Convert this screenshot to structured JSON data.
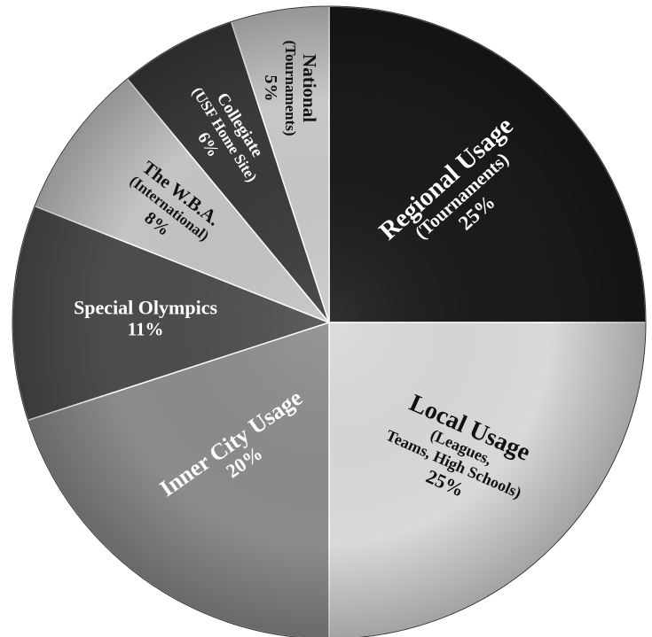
{
  "chart_data": {
    "type": "pie",
    "slices": [
      {
        "title": "Regional Usage",
        "subtitle": "(Tournaments)",
        "percent_label": "25%",
        "value": 25,
        "color": "#1a1a1a",
        "text_color": "#ffffff"
      },
      {
        "title": "Local Usage",
        "subtitle": "(Leagues, Teams, High Schools)",
        "percent_label": "25%",
        "value": 25,
        "color": "#d9d9d9",
        "text_color": "#111111"
      },
      {
        "title": "Inner City Usage",
        "subtitle": "",
        "percent_label": "20%",
        "value": 20,
        "color": "#8c8c8c",
        "text_color": "#ffffff"
      },
      {
        "title": "Special Olympics",
        "subtitle": "",
        "percent_label": "11%",
        "value": 11,
        "color": "#4d4d4d",
        "text_color": "#ffffff"
      },
      {
        "title": "The W.B.A.",
        "subtitle": "(International)",
        "percent_label": "8%",
        "value": 8,
        "color": "#c4c4c4",
        "text_color": "#111111"
      },
      {
        "title": "Collegiate",
        "subtitle": "(USF Home Site)",
        "percent_label": "6%",
        "value": 6,
        "color": "#3a3a3a",
        "text_color": "#ffffff"
      },
      {
        "title": "National",
        "subtitle": "(Tournaments)",
        "percent_label": "5%",
        "value": 5,
        "color": "#c8c8c8",
        "text_color": "#111111"
      }
    ]
  }
}
